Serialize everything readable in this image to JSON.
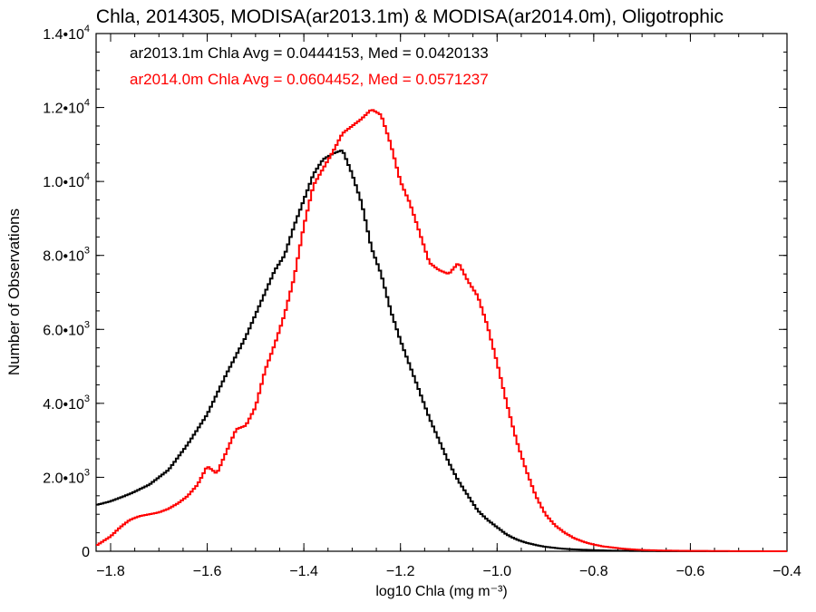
{
  "chart_data": {
    "type": "line",
    "title": "Chla, 2014305, MODISA(ar2013.1m) & MODISA(ar2014.0m), Oligotrophic",
    "xlabel": "log10 Chla (mg m⁻³)",
    "ylabel": "Number of Observations",
    "xlim": [
      -1.83,
      -0.4
    ],
    "ylim": [
      0,
      14000
    ],
    "x_ticks": [
      {
        "value": -1.8,
        "label": "−1.8"
      },
      {
        "value": -1.6,
        "label": "−1.6"
      },
      {
        "value": -1.4,
        "label": "−1.4"
      },
      {
        "value": -1.2,
        "label": "−1.2"
      },
      {
        "value": -1.0,
        "label": "−1.0"
      },
      {
        "value": -0.8,
        "label": "−0.8"
      },
      {
        "value": -0.6,
        "label": "−0.6"
      },
      {
        "value": -0.4,
        "label": "−0.4"
      }
    ],
    "y_ticks": [
      {
        "value": 0,
        "mant": "0",
        "exp": ""
      },
      {
        "value": 2000,
        "mant": "2.0•10",
        "exp": "3"
      },
      {
        "value": 4000,
        "mant": "4.0•10",
        "exp": "3"
      },
      {
        "value": 6000,
        "mant": "6.0•10",
        "exp": "3"
      },
      {
        "value": 8000,
        "mant": "8.0•10",
        "exp": "3"
      },
      {
        "value": 10000,
        "mant": "1.0•10",
        "exp": "4"
      },
      {
        "value": 12000,
        "mant": "1.2•10",
        "exp": "4"
      },
      {
        "value": 14000,
        "mant": "1.4•10",
        "exp": "4"
      }
    ],
    "annotations": [
      {
        "text": "ar2013.1m Chla Avg = 0.0444153, Med = 0.0420133",
        "color": "#000000"
      },
      {
        "text": "ar2014.0m Chla Avg = 0.0604452, Med = 0.0571237",
        "color": "#ff0000"
      }
    ],
    "series": [
      {
        "color": "#000000",
        "x": [
          -1.83,
          -1.8,
          -1.76,
          -1.72,
          -1.68,
          -1.64,
          -1.6,
          -1.56,
          -1.52,
          -1.48,
          -1.46,
          -1.44,
          -1.42,
          -1.4,
          -1.38,
          -1.36,
          -1.34,
          -1.32,
          -1.3,
          -1.28,
          -1.26,
          -1.24,
          -1.22,
          -1.2,
          -1.18,
          -1.16,
          -1.14,
          -1.12,
          -1.1,
          -1.08,
          -1.06,
          -1.04,
          -1.02,
          -1.0,
          -0.98,
          -0.96,
          -0.94,
          -0.92,
          -0.9,
          -0.88,
          -0.86,
          -0.84,
          -0.82,
          -0.8,
          -0.78,
          -0.76,
          -0.72,
          -0.68,
          -0.64,
          -0.6,
          -0.5,
          -0.4
        ],
        "y": [
          1250,
          1350,
          1550,
          1800,
          2200,
          2900,
          3700,
          4800,
          5800,
          7000,
          7600,
          8000,
          8800,
          9500,
          10200,
          10600,
          10750,
          10850,
          10200,
          9400,
          8200,
          7500,
          6500,
          5700,
          5000,
          4300,
          3600,
          3000,
          2400,
          1900,
          1500,
          1100,
          850,
          650,
          450,
          320,
          230,
          170,
          120,
          90,
          65,
          50,
          40,
          30,
          22,
          15,
          10,
          5,
          3,
          2,
          1,
          0
        ]
      },
      {
        "color": "#ff0000",
        "x": [
          -1.83,
          -1.8,
          -1.78,
          -1.76,
          -1.74,
          -1.72,
          -1.7,
          -1.68,
          -1.66,
          -1.64,
          -1.62,
          -1.6,
          -1.58,
          -1.56,
          -1.54,
          -1.52,
          -1.5,
          -1.48,
          -1.46,
          -1.44,
          -1.42,
          -1.4,
          -1.38,
          -1.36,
          -1.34,
          -1.32,
          -1.3,
          -1.28,
          -1.26,
          -1.24,
          -1.22,
          -1.2,
          -1.18,
          -1.16,
          -1.14,
          -1.12,
          -1.1,
          -1.08,
          -1.06,
          -1.04,
          -1.02,
          -1.0,
          -0.98,
          -0.96,
          -0.94,
          -0.92,
          -0.9,
          -0.88,
          -0.86,
          -0.84,
          -0.82,
          -0.8,
          -0.78,
          -0.76,
          -0.74,
          -0.72,
          -0.7,
          -0.66,
          -0.6,
          -0.5,
          -0.4
        ],
        "y": [
          150,
          400,
          650,
          850,
          950,
          1000,
          1050,
          1150,
          1300,
          1500,
          1800,
          2300,
          2100,
          2700,
          3300,
          3400,
          3900,
          4900,
          5600,
          6400,
          7400,
          8800,
          9900,
          10350,
          10800,
          11300,
          11500,
          11700,
          11950,
          11800,
          11000,
          10000,
          9400,
          8600,
          7800,
          7600,
          7500,
          7800,
          7300,
          6900,
          6100,
          5100,
          4000,
          3000,
          2200,
          1500,
          1000,
          700,
          500,
          350,
          250,
          180,
          130,
          100,
          70,
          50,
          35,
          20,
          10,
          3,
          0
        ]
      }
    ]
  }
}
